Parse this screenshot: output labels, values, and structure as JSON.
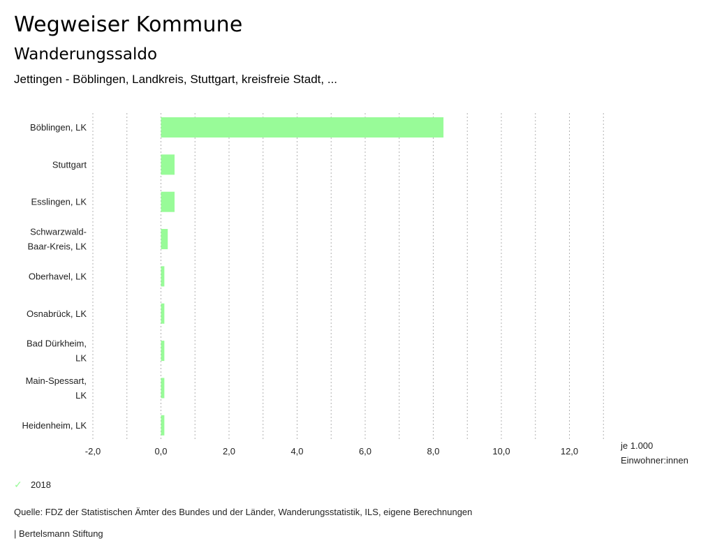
{
  "header": {
    "title": "Wegweiser Kommune",
    "subtitle": "Wanderungssaldo",
    "region": "Jettingen - Böblingen, Landkreis, Stuttgart, kreisfreie Stadt, ..."
  },
  "chart_data": {
    "type": "bar",
    "orientation": "horizontal",
    "title": "Wanderungssaldo",
    "categories": [
      [
        "Böblingen, LK"
      ],
      [
        "Stuttgart"
      ],
      [
        "Esslingen, LK"
      ],
      [
        "Schwarzwald-",
        "Baar-Kreis, LK"
      ],
      [
        "Oberhavel, LK"
      ],
      [
        "Osnabrück, LK"
      ],
      [
        "Bad Dürkheim,",
        "LK"
      ],
      [
        "Main-Spessart,",
        "LK"
      ],
      [
        "Heidenheim, LK"
      ]
    ],
    "series": [
      {
        "name": "2018",
        "color": "#98fb98",
        "values": [
          8.3,
          0.4,
          0.4,
          0.2,
          0.1,
          0.1,
          0.1,
          0.1,
          0.1
        ]
      }
    ],
    "xlim": [
      -2,
      13
    ],
    "xticks": [
      -2,
      0,
      2,
      4,
      6,
      8,
      10,
      12
    ],
    "xtick_labels": [
      "-2,0",
      "0,0",
      "2,0",
      "4,0",
      "6,0",
      "8,0",
      "10,0",
      "12,0"
    ],
    "gridlines": [
      -2,
      -1,
      0,
      1,
      2,
      3,
      4,
      5,
      6,
      7,
      8,
      9,
      10,
      11,
      12,
      13
    ],
    "grid": true,
    "xlabel": [
      "je 1.000",
      "Einwohner:innen"
    ],
    "legend_position": "bottom-left"
  },
  "legend": {
    "label": "2018",
    "icon": "check-icon",
    "color": "#98fb98"
  },
  "footer": {
    "source": "Quelle: FDZ der Statistischen Ämter des Bundes und der Länder, Wanderungsstatistik, ILS, eigene Berechnungen",
    "brand": "| Bertelsmann Stiftung"
  }
}
